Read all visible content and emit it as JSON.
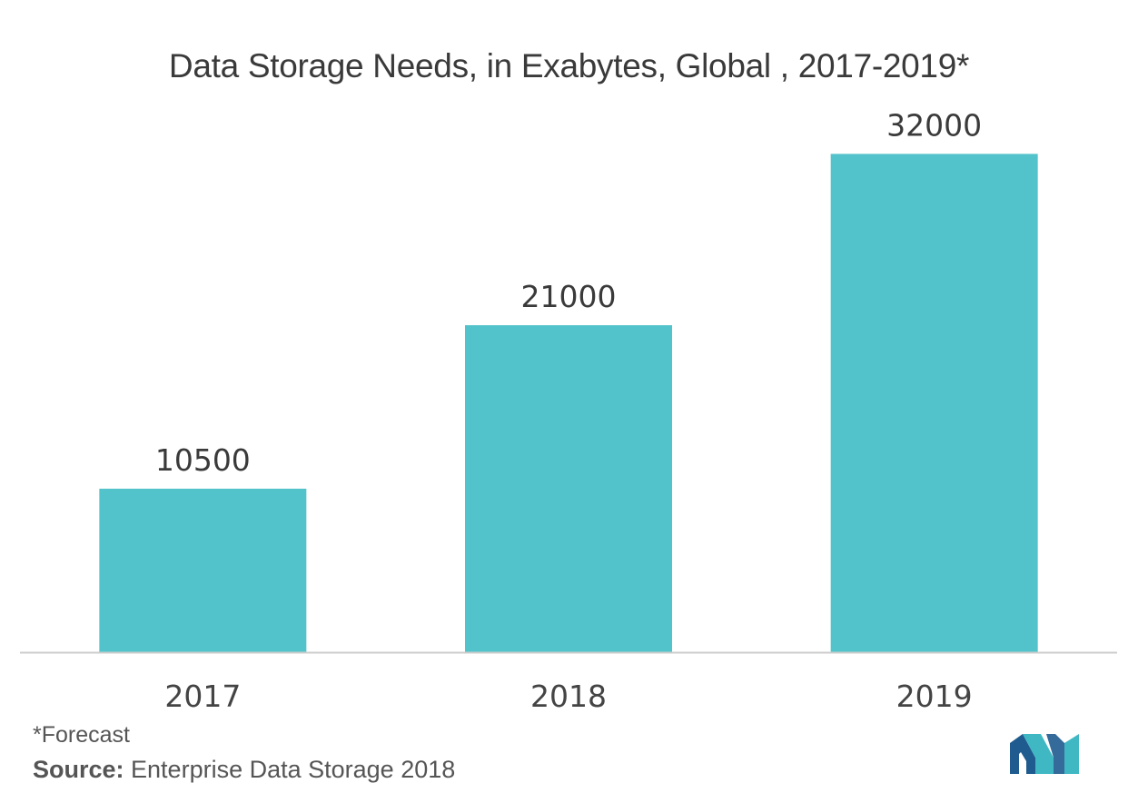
{
  "chart_data": {
    "type": "bar",
    "title": "Data Storage Needs, in Exabytes, Global , 2017-2019*",
    "categories": [
      "2017",
      "2018",
      "2019"
    ],
    "values": [
      10500,
      21000,
      32000
    ],
    "data_labels": [
      "10500",
      "21000",
      "32000"
    ],
    "xlabel": "",
    "ylabel": "",
    "ylim": [
      0,
      35000
    ],
    "grid": false,
    "legend": "none",
    "bar_color": "#52c3ca",
    "axis_color": "#cccccc"
  },
  "footnote": "*Forecast",
  "source": {
    "label": "Source:",
    "text": " Enterprise Data Storage 2018"
  },
  "logo": {
    "icon": "mordor-intelligence-logo",
    "colors": [
      "#1f5b8f",
      "#3fb8c4"
    ]
  }
}
